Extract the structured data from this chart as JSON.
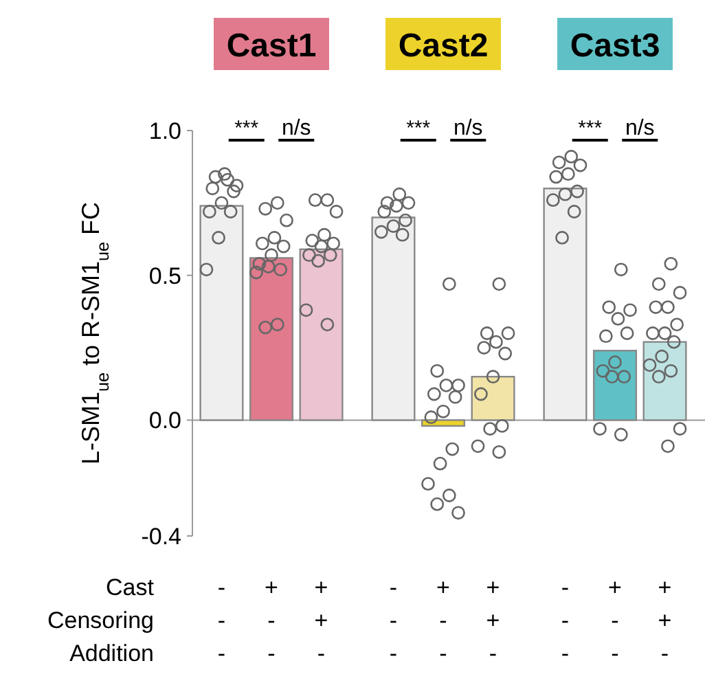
{
  "chart_data": [
    {
      "type": "bar",
      "title": "Cast1",
      "ylabel": "L-SM1$_{ue}$ to R-SM1$_{ue}$  FC",
      "xlabel": "Cast\nCensoring\nAddition",
      "categories": [
        "-\n-\n-",
        "+\n-\n-",
        "+\n+\n-"
      ],
      "values": [
        0.74,
        0.56,
        0.59
      ],
      "colors": [
        "#efefef",
        "#e07a8c",
        "#ecc3d0"
      ],
      "ylim": [
        -0.4,
        1.0
      ],
      "yticks": [
        {
          "value": -0.4,
          "label": "-0.4"
        },
        {
          "value": 0,
          "label": "0.0"
        },
        {
          "value": 0.5,
          "label": "0.5"
        },
        {
          "value": 1,
          "label": "1.0"
        }
      ],
      "annotations": [
        "***",
        "n/s"
      ],
      "ref_lines": [
        {
          "axis": "y",
          "value": 0,
          "color": "#999999"
        }
      ],
      "marker": "circle",
      "series": [
        {
          "type": "scatter",
          "color": "#666666",
          "x": [
            "-\n-\n-",
            "-\n-\n-",
            "-\n-\n-",
            "-\n-\n-",
            "-\n-\n-",
            "-\n-\n-",
            "-\n-\n-",
            "-\n-\n-",
            "-\n-\n-",
            "-\n-\n-",
            "-\n-\n-",
            "+\n-\n-",
            "+\n-\n-",
            "+\n-\n-",
            "+\n-\n-",
            "+\n-\n-",
            "+\n-\n-",
            "+\n-\n-",
            "+\n-\n-",
            "+\n-\n-",
            "+\n-\n-",
            "+\n-\n-",
            "+\n-\n-",
            "+\n-\n-",
            "+\n+\n-",
            "+\n+\n-",
            "+\n+\n-",
            "+\n+\n-",
            "+\n+\n-",
            "+\n+\n-",
            "+\n+\n-",
            "+\n+\n-",
            "+\n+\n-",
            "+\n+\n-",
            "+\n+\n-",
            "+\n+\n-"
          ],
          "values": [
            0.83,
            0.84,
            0.81,
            0.85,
            0.8,
            0.79,
            0.75,
            0.72,
            0.72,
            0.63,
            0.52,
            0.75,
            0.73,
            0.69,
            0.63,
            0.61,
            0.6,
            0.57,
            0.54,
            0.52,
            0.53,
            0.51,
            0.33,
            0.32,
            0.76,
            0.76,
            0.72,
            0.64,
            0.62,
            0.61,
            0.6,
            0.57,
            0.57,
            0.55,
            0.38,
            0.33
          ]
        }
      ]
    },
    {
      "type": "bar",
      "title": "Cast2",
      "tick_labels": "x",
      "categories": [
        "-\n-\n-",
        "+\n-\n-",
        "+\n+\n-"
      ],
      "values": [
        0.7,
        -0.02,
        0.15
      ],
      "colors": [
        "#efefef",
        "#ecd22a",
        "#f1e4a6"
      ],
      "ylim": [
        -0.4,
        1.0
      ],
      "annotations": [
        "***",
        "n/s"
      ],
      "ref_lines": [
        {
          "axis": "y",
          "value": 0,
          "color": "#999999"
        }
      ],
      "marker": "circle",
      "series": [
        {
          "type": "scatter",
          "color": "#666666",
          "x": [
            "-\n-\n-",
            "-\n-\n-",
            "-\n-\n-",
            "-\n-\n-",
            "-\n-\n-",
            "-\n-\n-",
            "-\n-\n-",
            "-\n-\n-",
            "-\n-\n-",
            "+\n-\n-",
            "+\n-\n-",
            "+\n-\n-",
            "+\n-\n-",
            "+\n-\n-",
            "+\n-\n-",
            "+\n-\n-",
            "+\n-\n-",
            "+\n-\n-",
            "+\n-\n-",
            "+\n-\n-",
            "+\n-\n-",
            "+\n-\n-",
            "+\n-\n-",
            "+\n+\n-",
            "+\n+\n-",
            "+\n+\n-",
            "+\n+\n-",
            "+\n+\n-",
            "+\n+\n-",
            "+\n+\n-",
            "+\n+\n-",
            "+\n+\n-",
            "+\n+\n-",
            "+\n+\n-",
            "+\n+\n-"
          ],
          "values": [
            0.78,
            0.75,
            0.75,
            0.74,
            0.72,
            0.69,
            0.67,
            0.65,
            0.64,
            0.47,
            0.17,
            0.12,
            0.12,
            0.09,
            0.08,
            0.03,
            0.01,
            -0.1,
            -0.15,
            -0.22,
            -0.26,
            -0.29,
            -0.32,
            0.47,
            0.3,
            0.3,
            0.27,
            0.25,
            0.23,
            0.15,
            0.09,
            -0.02,
            -0.03,
            -0.09,
            -0.11
          ]
        }
      ]
    },
    {
      "type": "bar",
      "title": "Cast3",
      "tick_labels": "x",
      "categories": [
        "-\n-\n-",
        "+\n-\n-",
        "+\n+\n-"
      ],
      "values": [
        0.8,
        0.24,
        0.27
      ],
      "colors": [
        "#efefef",
        "#5fc1c5",
        "#bfe3e3"
      ],
      "ylim": [
        -0.4,
        1.0
      ],
      "annotations": [
        "***",
        "n/s"
      ],
      "ref_lines": [
        {
          "axis": "y",
          "value": 0,
          "color": "#999999"
        }
      ],
      "marker": "circle",
      "series": [
        {
          "type": "scatter",
          "color": "#666666",
          "x": [
            "-\n-\n-",
            "-\n-\n-",
            "-\n-\n-",
            "-\n-\n-",
            "-\n-\n-",
            "-\n-\n-",
            "-\n-\n-",
            "-\n-\n-",
            "-\n-\n-",
            "-\n-\n-",
            "+\n-\n-",
            "+\n-\n-",
            "+\n-\n-",
            "+\n-\n-",
            "+\n-\n-",
            "+\n-\n-",
            "+\n-\n-",
            "+\n-\n-",
            "+\n-\n-",
            "+\n-\n-",
            "+\n-\n-",
            "+\n-\n-",
            "+\n+\n-",
            "+\n+\n-",
            "+\n+\n-",
            "+\n+\n-",
            "+\n+\n-",
            "+\n+\n-",
            "+\n+\n-",
            "+\n+\n-",
            "+\n+\n-",
            "+\n+\n-",
            "+\n+\n-",
            "+\n+\n-",
            "+\n+\n-",
            "+\n+\n-",
            "+\n+\n-"
          ],
          "values": [
            0.91,
            0.89,
            0.88,
            0.85,
            0.84,
            0.79,
            0.78,
            0.76,
            0.72,
            0.63,
            0.52,
            0.39,
            0.38,
            0.35,
            0.29,
            0.3,
            0.2,
            0.17,
            0.15,
            0.15,
            -0.03,
            -0.05,
            0.54,
            0.47,
            0.44,
            0.39,
            0.39,
            0.33,
            0.3,
            0.3,
            0.27,
            0.22,
            0.19,
            0.17,
            0.15,
            -0.03,
            -0.09
          ]
        }
      ]
    }
  ]
}
